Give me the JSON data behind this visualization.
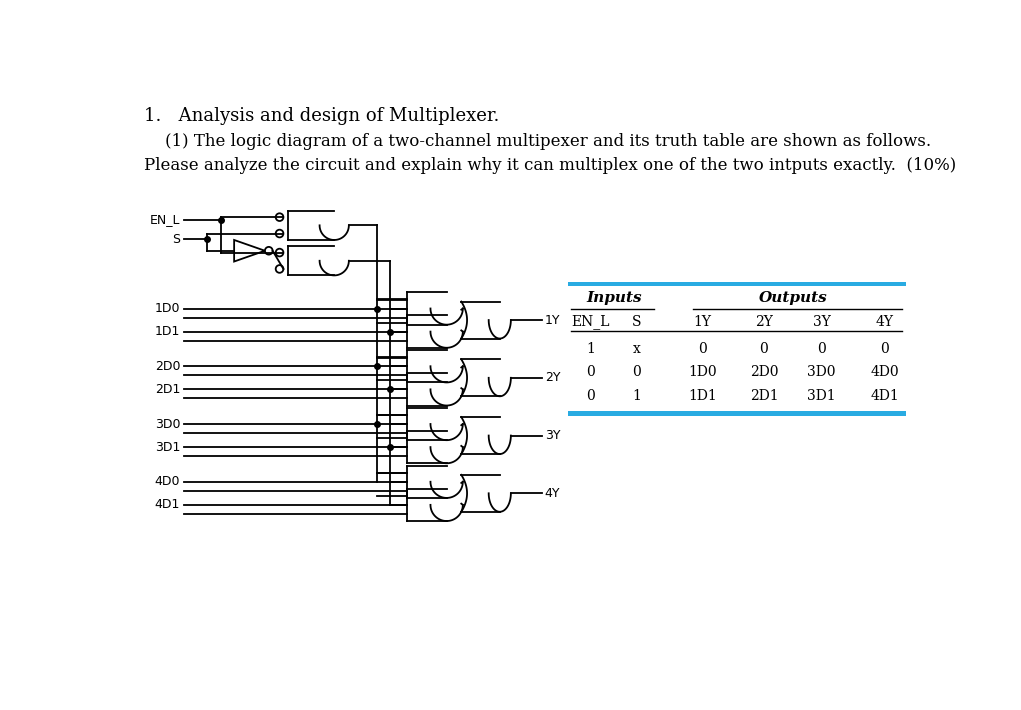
{
  "bg_color": "#ffffff",
  "line_color": "#000000",
  "table_header_color": "#29abe2",
  "title_line1": "1.   Analysis and design of Multiplexer.",
  "title_line2": "    (1) The logic diagram of a two-channel multipexer and its truth table are shown as follows.",
  "title_line3": "Please analyze the circuit and explain why it can multiplex one of the two intputs exactly.  (10%)",
  "col_headers": [
    "EN_L",
    "S",
    "1Y",
    "2Y",
    "3Y",
    "4Y"
  ],
  "inputs_label": "Inputs",
  "outputs_label": "Outputs",
  "rows": [
    [
      "1",
      "x",
      "0",
      "0",
      "0",
      "0"
    ],
    [
      "0",
      "0",
      "1D0",
      "2D0",
      "3D0",
      "4D0"
    ],
    [
      "0",
      "1",
      "1D1",
      "2D1",
      "3D1",
      "4D1"
    ]
  ]
}
